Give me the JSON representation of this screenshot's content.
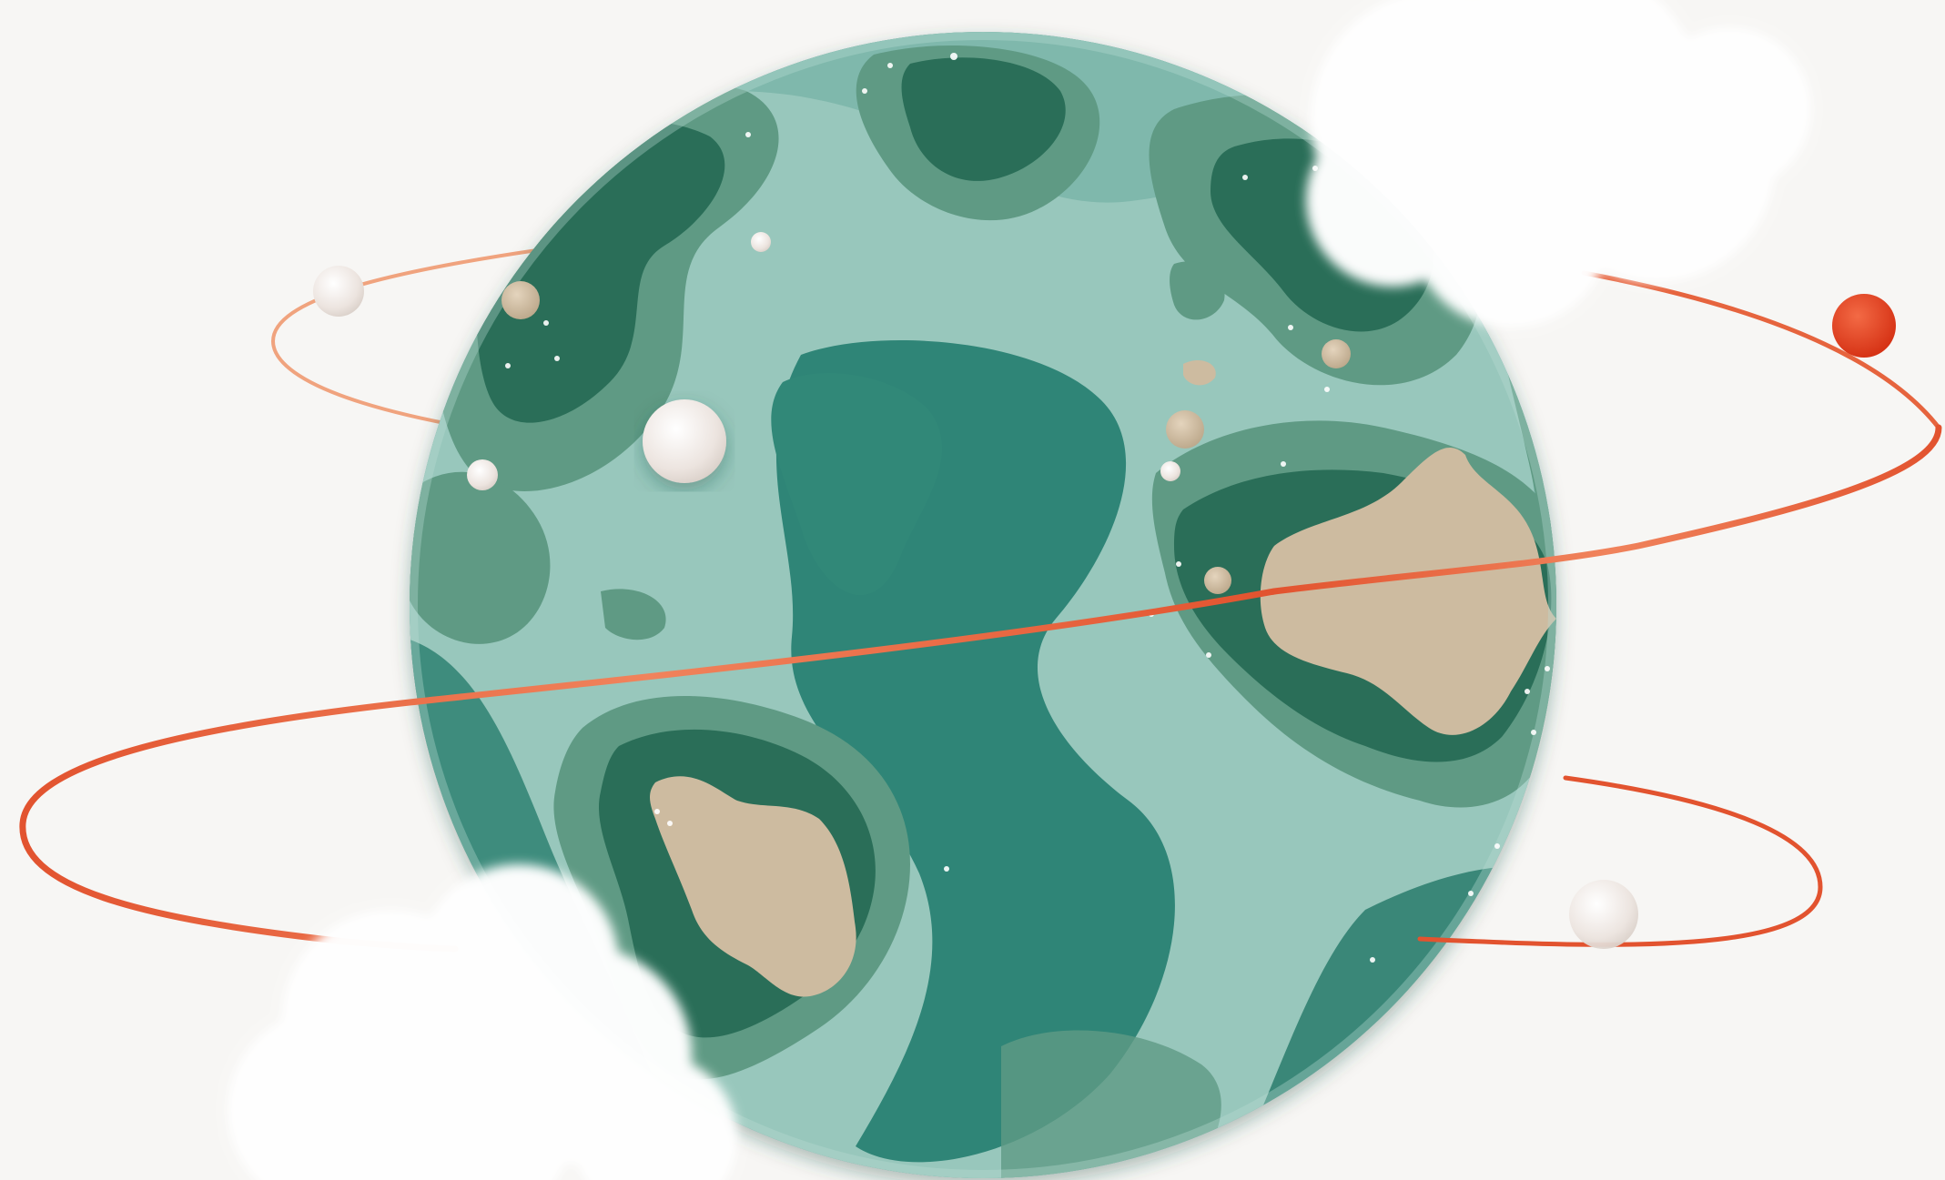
{
  "colors": {
    "background": "#f7f6f4",
    "ocean_deep": "#2f8577",
    "ocean_mid": "#4c9a8c",
    "ocean_light": "#7fb8ac",
    "ocean_pale": "#a8d0c6",
    "land_dark": "#2a6e58",
    "land_mid": "#3f8468",
    "land_sand": "#cdbba0",
    "orbit": "#e35f3a",
    "orbit_highlight": "#f3a07a",
    "moon": "#ece4df",
    "planet_red": "#e0391c",
    "cloud": "#ffffff"
  }
}
